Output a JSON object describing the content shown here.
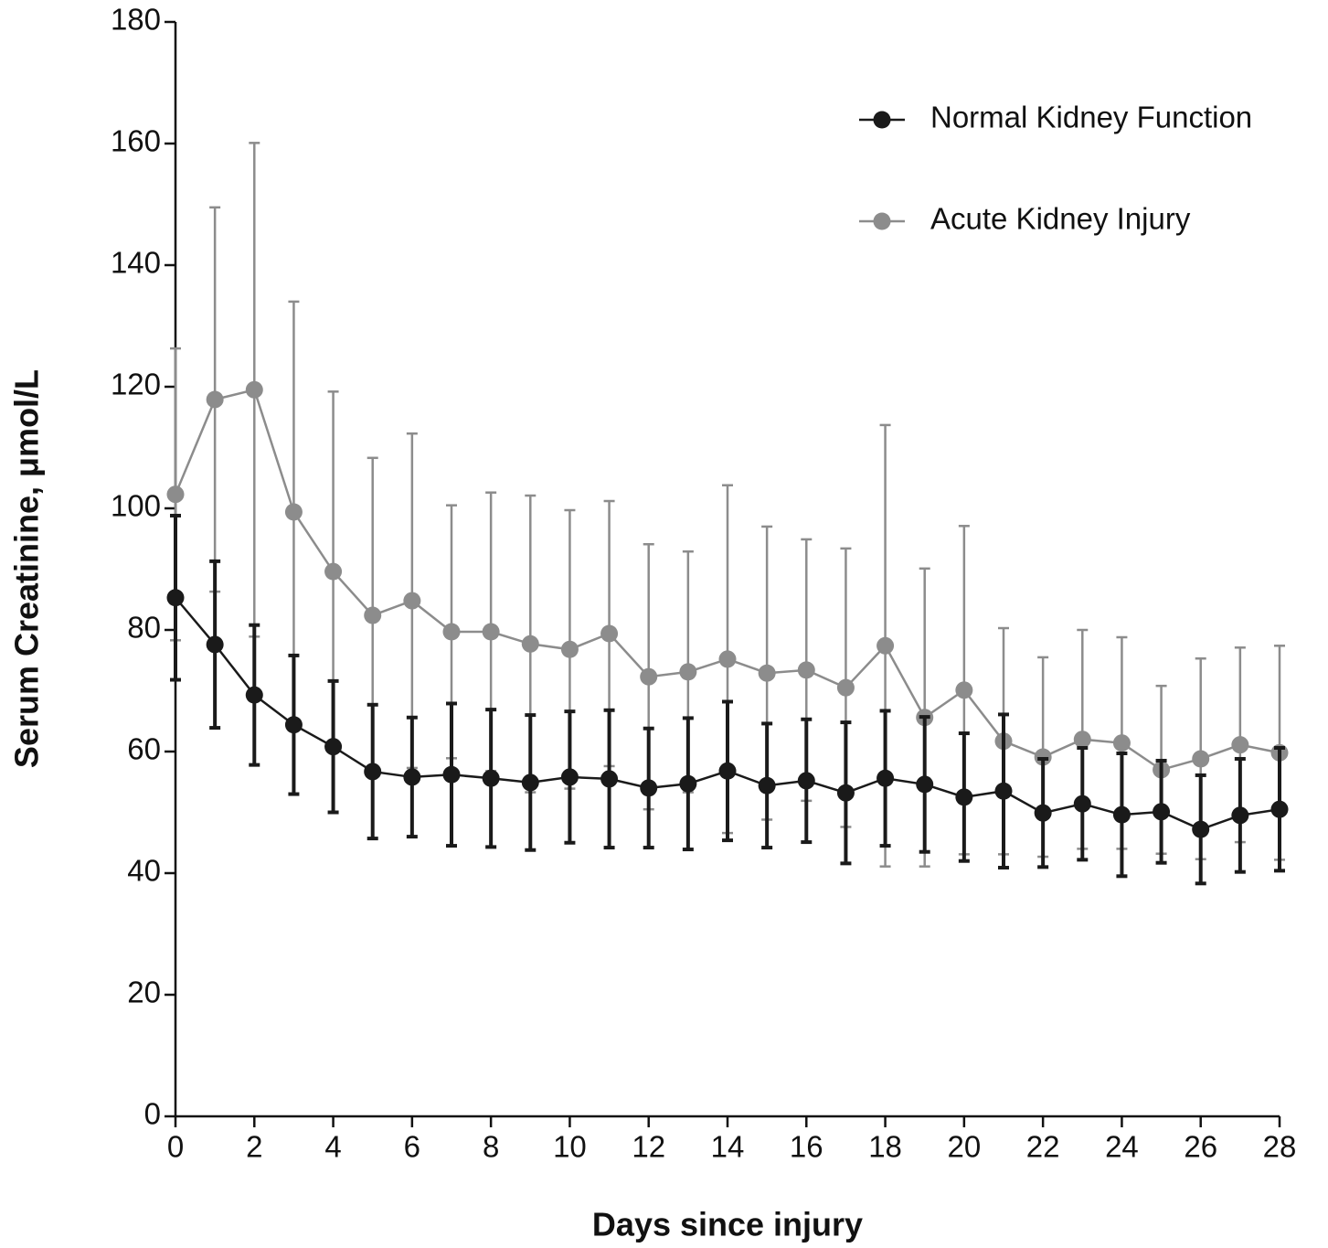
{
  "chart_data": {
    "type": "line",
    "x_label": "Days since injury",
    "y_label": "Serum Creatinine, μmol/L",
    "x": [
      0,
      1,
      2,
      3,
      4,
      5,
      6,
      7,
      8,
      9,
      10,
      11,
      12,
      13,
      14,
      15,
      16,
      17,
      18,
      19,
      20,
      21,
      22,
      23,
      24,
      25,
      26,
      27,
      28
    ],
    "xlim": [
      0,
      28
    ],
    "xticks": [
      0,
      2,
      4,
      6,
      8,
      10,
      12,
      14,
      16,
      18,
      20,
      22,
      24,
      26,
      28
    ],
    "ylim": [
      0,
      180
    ],
    "yticks": [
      0,
      20,
      40,
      60,
      80,
      100,
      120,
      140,
      160,
      180
    ],
    "legend": "upper right",
    "series": [
      {
        "name": "Normal Kidney Function",
        "color": "#1a1a1a",
        "values": [
          85.3,
          77.6,
          69.3,
          64.4,
          60.8,
          56.7,
          55.8,
          56.2,
          55.6,
          54.9,
          55.8,
          55.5,
          54.0,
          54.7,
          56.8,
          54.4,
          55.2,
          53.2,
          55.6,
          54.6,
          52.5,
          53.5,
          49.9,
          51.4,
          49.6,
          50.1,
          47.2,
          49.5,
          50.5
        ],
        "errors": [
          13.5,
          13.7,
          11.5,
          11.4,
          10.8,
          11.0,
          9.8,
          11.7,
          11.3,
          11.1,
          10.8,
          11.3,
          9.8,
          10.8,
          11.4,
          10.2,
          10.1,
          11.6,
          11.1,
          11.1,
          10.5,
          12.6,
          8.9,
          9.2,
          10.1,
          8.4,
          8.9,
          9.3,
          10.1
        ]
      },
      {
        "name": "Acute Kidney Injury",
        "color": "#8c8c8c",
        "values": [
          102.3,
          117.9,
          119.5,
          99.4,
          89.6,
          82.4,
          84.8,
          79.7,
          79.7,
          77.7,
          76.8,
          79.4,
          72.3,
          73.1,
          75.2,
          72.9,
          73.4,
          70.5,
          77.4,
          65.6,
          70.1,
          61.7,
          59.1,
          62.0,
          61.4,
          57.0,
          58.8,
          61.1,
          59.8
        ],
        "errors": [
          24.0,
          31.6,
          40.6,
          34.6,
          29.6,
          25.9,
          27.5,
          20.8,
          22.9,
          24.4,
          22.9,
          21.8,
          21.8,
          19.8,
          28.6,
          24.1,
          21.5,
          22.9,
          36.3,
          24.5,
          27.0,
          18.6,
          16.4,
          18.0,
          17.4,
          13.8,
          16.5,
          16.0,
          17.6
        ]
      }
    ]
  }
}
